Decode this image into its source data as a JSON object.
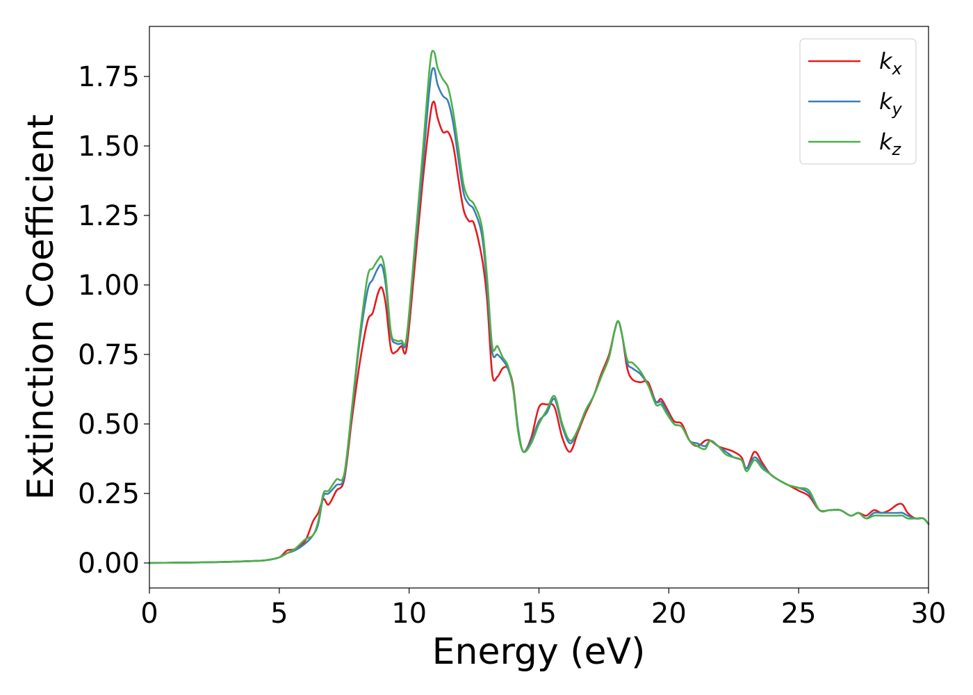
{
  "chart_data": {
    "type": "line",
    "title": "",
    "xlabel": "Energy (eV)",
    "ylabel": "Extinction Coefficient",
    "xlim": [
      0,
      30
    ],
    "ylim": [
      -0.09,
      1.93
    ],
    "xticks": [
      0,
      5,
      10,
      15,
      20,
      25,
      30
    ],
    "xtick_labels": [
      "0",
      "5",
      "10",
      "15",
      "20",
      "25",
      "30"
    ],
    "yticks": [
      0,
      0.25,
      0.5,
      0.75,
      1.0,
      1.25,
      1.5,
      1.75
    ],
    "ytick_labels": [
      "0.00",
      "0.25",
      "0.50",
      "0.75",
      "1.00",
      "1.25",
      "1.50",
      "1.75"
    ],
    "grid": false,
    "legend_position": "top-right",
    "series": [
      {
        "name": "k",
        "subscript": "x",
        "color": "#e41a1c",
        "x": [
          0,
          1,
          2,
          3,
          4,
          4.5,
          5,
          5.3,
          5.6,
          6,
          6.3,
          6.5,
          6.7,
          6.9,
          7.2,
          7.5,
          7.8,
          8.1,
          8.4,
          8.6,
          8.8,
          8.95,
          9.1,
          9.3,
          9.5,
          9.7,
          9.9,
          10.2,
          10.5,
          10.8,
          10.95,
          11.1,
          11.3,
          11.5,
          11.7,
          11.9,
          12.1,
          12.3,
          12.5,
          12.8,
          13.0,
          13.2,
          13.4,
          13.6,
          13.8,
          14.0,
          14.2,
          14.4,
          14.7,
          15.0,
          15.3,
          15.6,
          15.9,
          16.2,
          16.5,
          16.8,
          17.1,
          17.4,
          17.7,
          17.9,
          18.05,
          18.2,
          18.4,
          18.6,
          18.9,
          19.2,
          19.5,
          19.7,
          19.9,
          20.2,
          20.5,
          20.8,
          21.1,
          21.4,
          21.6,
          21.9,
          22.2,
          22.5,
          22.8,
          23.0,
          23.3,
          23.6,
          23.9,
          24.2,
          24.6,
          25.0,
          25.4,
          25.8,
          26.2,
          26.6,
          27.0,
          27.3,
          27.6,
          27.9,
          28.2,
          28.5,
          28.8,
          29.0,
          29.2,
          29.5,
          29.8,
          30
        ],
        "y": [
          0,
          0.001,
          0.002,
          0.004,
          0.007,
          0.01,
          0.02,
          0.045,
          0.05,
          0.08,
          0.15,
          0.18,
          0.23,
          0.21,
          0.26,
          0.3,
          0.52,
          0.72,
          0.87,
          0.9,
          0.97,
          0.99,
          0.93,
          0.77,
          0.76,
          0.78,
          0.77,
          1.05,
          1.35,
          1.6,
          1.66,
          1.6,
          1.55,
          1.55,
          1.5,
          1.38,
          1.27,
          1.23,
          1.22,
          1.1,
          0.95,
          0.68,
          0.67,
          0.7,
          0.7,
          0.64,
          0.48,
          0.4,
          0.45,
          0.56,
          0.57,
          0.56,
          0.45,
          0.4,
          0.47,
          0.54,
          0.6,
          0.68,
          0.75,
          0.83,
          0.87,
          0.82,
          0.7,
          0.66,
          0.65,
          0.65,
          0.58,
          0.59,
          0.56,
          0.51,
          0.5,
          0.44,
          0.42,
          0.44,
          0.44,
          0.42,
          0.41,
          0.4,
          0.38,
          0.34,
          0.4,
          0.36,
          0.32,
          0.3,
          0.28,
          0.26,
          0.24,
          0.19,
          0.19,
          0.19,
          0.17,
          0.18,
          0.17,
          0.19,
          0.18,
          0.19,
          0.21,
          0.21,
          0.18,
          0.16,
          0.16,
          0.14
        ]
      },
      {
        "name": "k",
        "subscript": "y",
        "color": "#377eb8",
        "x": [
          0,
          1,
          2,
          3,
          4,
          4.5,
          5,
          5.3,
          5.6,
          6,
          6.3,
          6.5,
          6.7,
          6.9,
          7.2,
          7.5,
          7.8,
          8.1,
          8.4,
          8.6,
          8.8,
          8.95,
          9.1,
          9.3,
          9.5,
          9.7,
          9.9,
          10.2,
          10.5,
          10.8,
          10.95,
          11.1,
          11.3,
          11.5,
          11.7,
          11.9,
          12.1,
          12.3,
          12.5,
          12.8,
          13.0,
          13.2,
          13.4,
          13.6,
          13.8,
          14.0,
          14.2,
          14.4,
          14.7,
          15.0,
          15.3,
          15.6,
          15.9,
          16.2,
          16.5,
          16.8,
          17.1,
          17.4,
          17.7,
          17.9,
          18.05,
          18.2,
          18.4,
          18.6,
          18.9,
          19.2,
          19.5,
          19.7,
          19.9,
          20.2,
          20.5,
          20.8,
          21.1,
          21.4,
          21.6,
          21.9,
          22.2,
          22.5,
          22.8,
          23.0,
          23.3,
          23.6,
          23.9,
          24.2,
          24.6,
          25.0,
          25.4,
          25.8,
          26.2,
          26.6,
          27.0,
          27.3,
          27.6,
          27.9,
          28.2,
          28.5,
          28.8,
          29.0,
          29.2,
          29.5,
          29.8,
          30
        ],
        "y": [
          0,
          0.001,
          0.002,
          0.004,
          0.007,
          0.01,
          0.02,
          0.035,
          0.045,
          0.07,
          0.1,
          0.14,
          0.24,
          0.25,
          0.28,
          0.31,
          0.55,
          0.8,
          0.98,
          1.02,
          1.06,
          1.07,
          1.0,
          0.82,
          0.79,
          0.79,
          0.8,
          1.1,
          1.4,
          1.72,
          1.78,
          1.72,
          1.68,
          1.66,
          1.58,
          1.45,
          1.33,
          1.29,
          1.27,
          1.18,
          1.0,
          0.76,
          0.75,
          0.73,
          0.7,
          0.63,
          0.48,
          0.4,
          0.44,
          0.51,
          0.54,
          0.59,
          0.49,
          0.43,
          0.48,
          0.55,
          0.6,
          0.67,
          0.74,
          0.83,
          0.87,
          0.82,
          0.72,
          0.7,
          0.68,
          0.64,
          0.58,
          0.58,
          0.55,
          0.5,
          0.49,
          0.44,
          0.43,
          0.42,
          0.44,
          0.42,
          0.4,
          0.38,
          0.37,
          0.34,
          0.38,
          0.35,
          0.32,
          0.3,
          0.28,
          0.27,
          0.25,
          0.19,
          0.19,
          0.19,
          0.17,
          0.18,
          0.16,
          0.18,
          0.18,
          0.18,
          0.18,
          0.18,
          0.17,
          0.16,
          0.16,
          0.14
        ]
      },
      {
        "name": "k",
        "subscript": "z",
        "color": "#4daf4a",
        "x": [
          0,
          1,
          2,
          3,
          4,
          4.5,
          5,
          5.3,
          5.6,
          6,
          6.3,
          6.5,
          6.7,
          6.9,
          7.2,
          7.5,
          7.8,
          8.1,
          8.4,
          8.6,
          8.8,
          8.95,
          9.1,
          9.3,
          9.5,
          9.7,
          9.9,
          10.2,
          10.5,
          10.8,
          10.95,
          11.1,
          11.3,
          11.5,
          11.7,
          11.9,
          12.1,
          12.3,
          12.5,
          12.8,
          13.0,
          13.2,
          13.4,
          13.6,
          13.8,
          14.0,
          14.2,
          14.4,
          14.7,
          15.0,
          15.3,
          15.6,
          15.9,
          16.2,
          16.5,
          16.8,
          17.1,
          17.4,
          17.7,
          17.9,
          18.05,
          18.2,
          18.4,
          18.6,
          18.9,
          19.2,
          19.5,
          19.7,
          19.9,
          20.2,
          20.5,
          20.8,
          21.1,
          21.4,
          21.6,
          21.9,
          22.2,
          22.5,
          22.8,
          23.0,
          23.3,
          23.6,
          23.9,
          24.2,
          24.6,
          25.0,
          25.4,
          25.8,
          26.2,
          26.6,
          27.0,
          27.3,
          27.6,
          27.9,
          28.2,
          28.5,
          28.8,
          29.0,
          29.2,
          29.5,
          29.8,
          30
        ],
        "y": [
          0,
          0.001,
          0.002,
          0.004,
          0.007,
          0.01,
          0.02,
          0.035,
          0.05,
          0.085,
          0.1,
          0.15,
          0.25,
          0.26,
          0.3,
          0.32,
          0.56,
          0.82,
          1.03,
          1.06,
          1.09,
          1.1,
          1.03,
          0.83,
          0.8,
          0.8,
          0.81,
          1.12,
          1.45,
          1.79,
          1.84,
          1.78,
          1.74,
          1.71,
          1.62,
          1.49,
          1.36,
          1.31,
          1.29,
          1.21,
          1.03,
          0.78,
          0.78,
          0.74,
          0.71,
          0.63,
          0.47,
          0.4,
          0.43,
          0.5,
          0.55,
          0.6,
          0.5,
          0.44,
          0.48,
          0.55,
          0.6,
          0.67,
          0.74,
          0.83,
          0.87,
          0.82,
          0.73,
          0.72,
          0.69,
          0.64,
          0.57,
          0.57,
          0.54,
          0.5,
          0.49,
          0.44,
          0.42,
          0.41,
          0.44,
          0.42,
          0.39,
          0.38,
          0.37,
          0.33,
          0.37,
          0.34,
          0.32,
          0.3,
          0.28,
          0.27,
          0.26,
          0.19,
          0.19,
          0.19,
          0.17,
          0.18,
          0.16,
          0.17,
          0.17,
          0.17,
          0.17,
          0.17,
          0.16,
          0.16,
          0.16,
          0.14
        ]
      }
    ]
  }
}
